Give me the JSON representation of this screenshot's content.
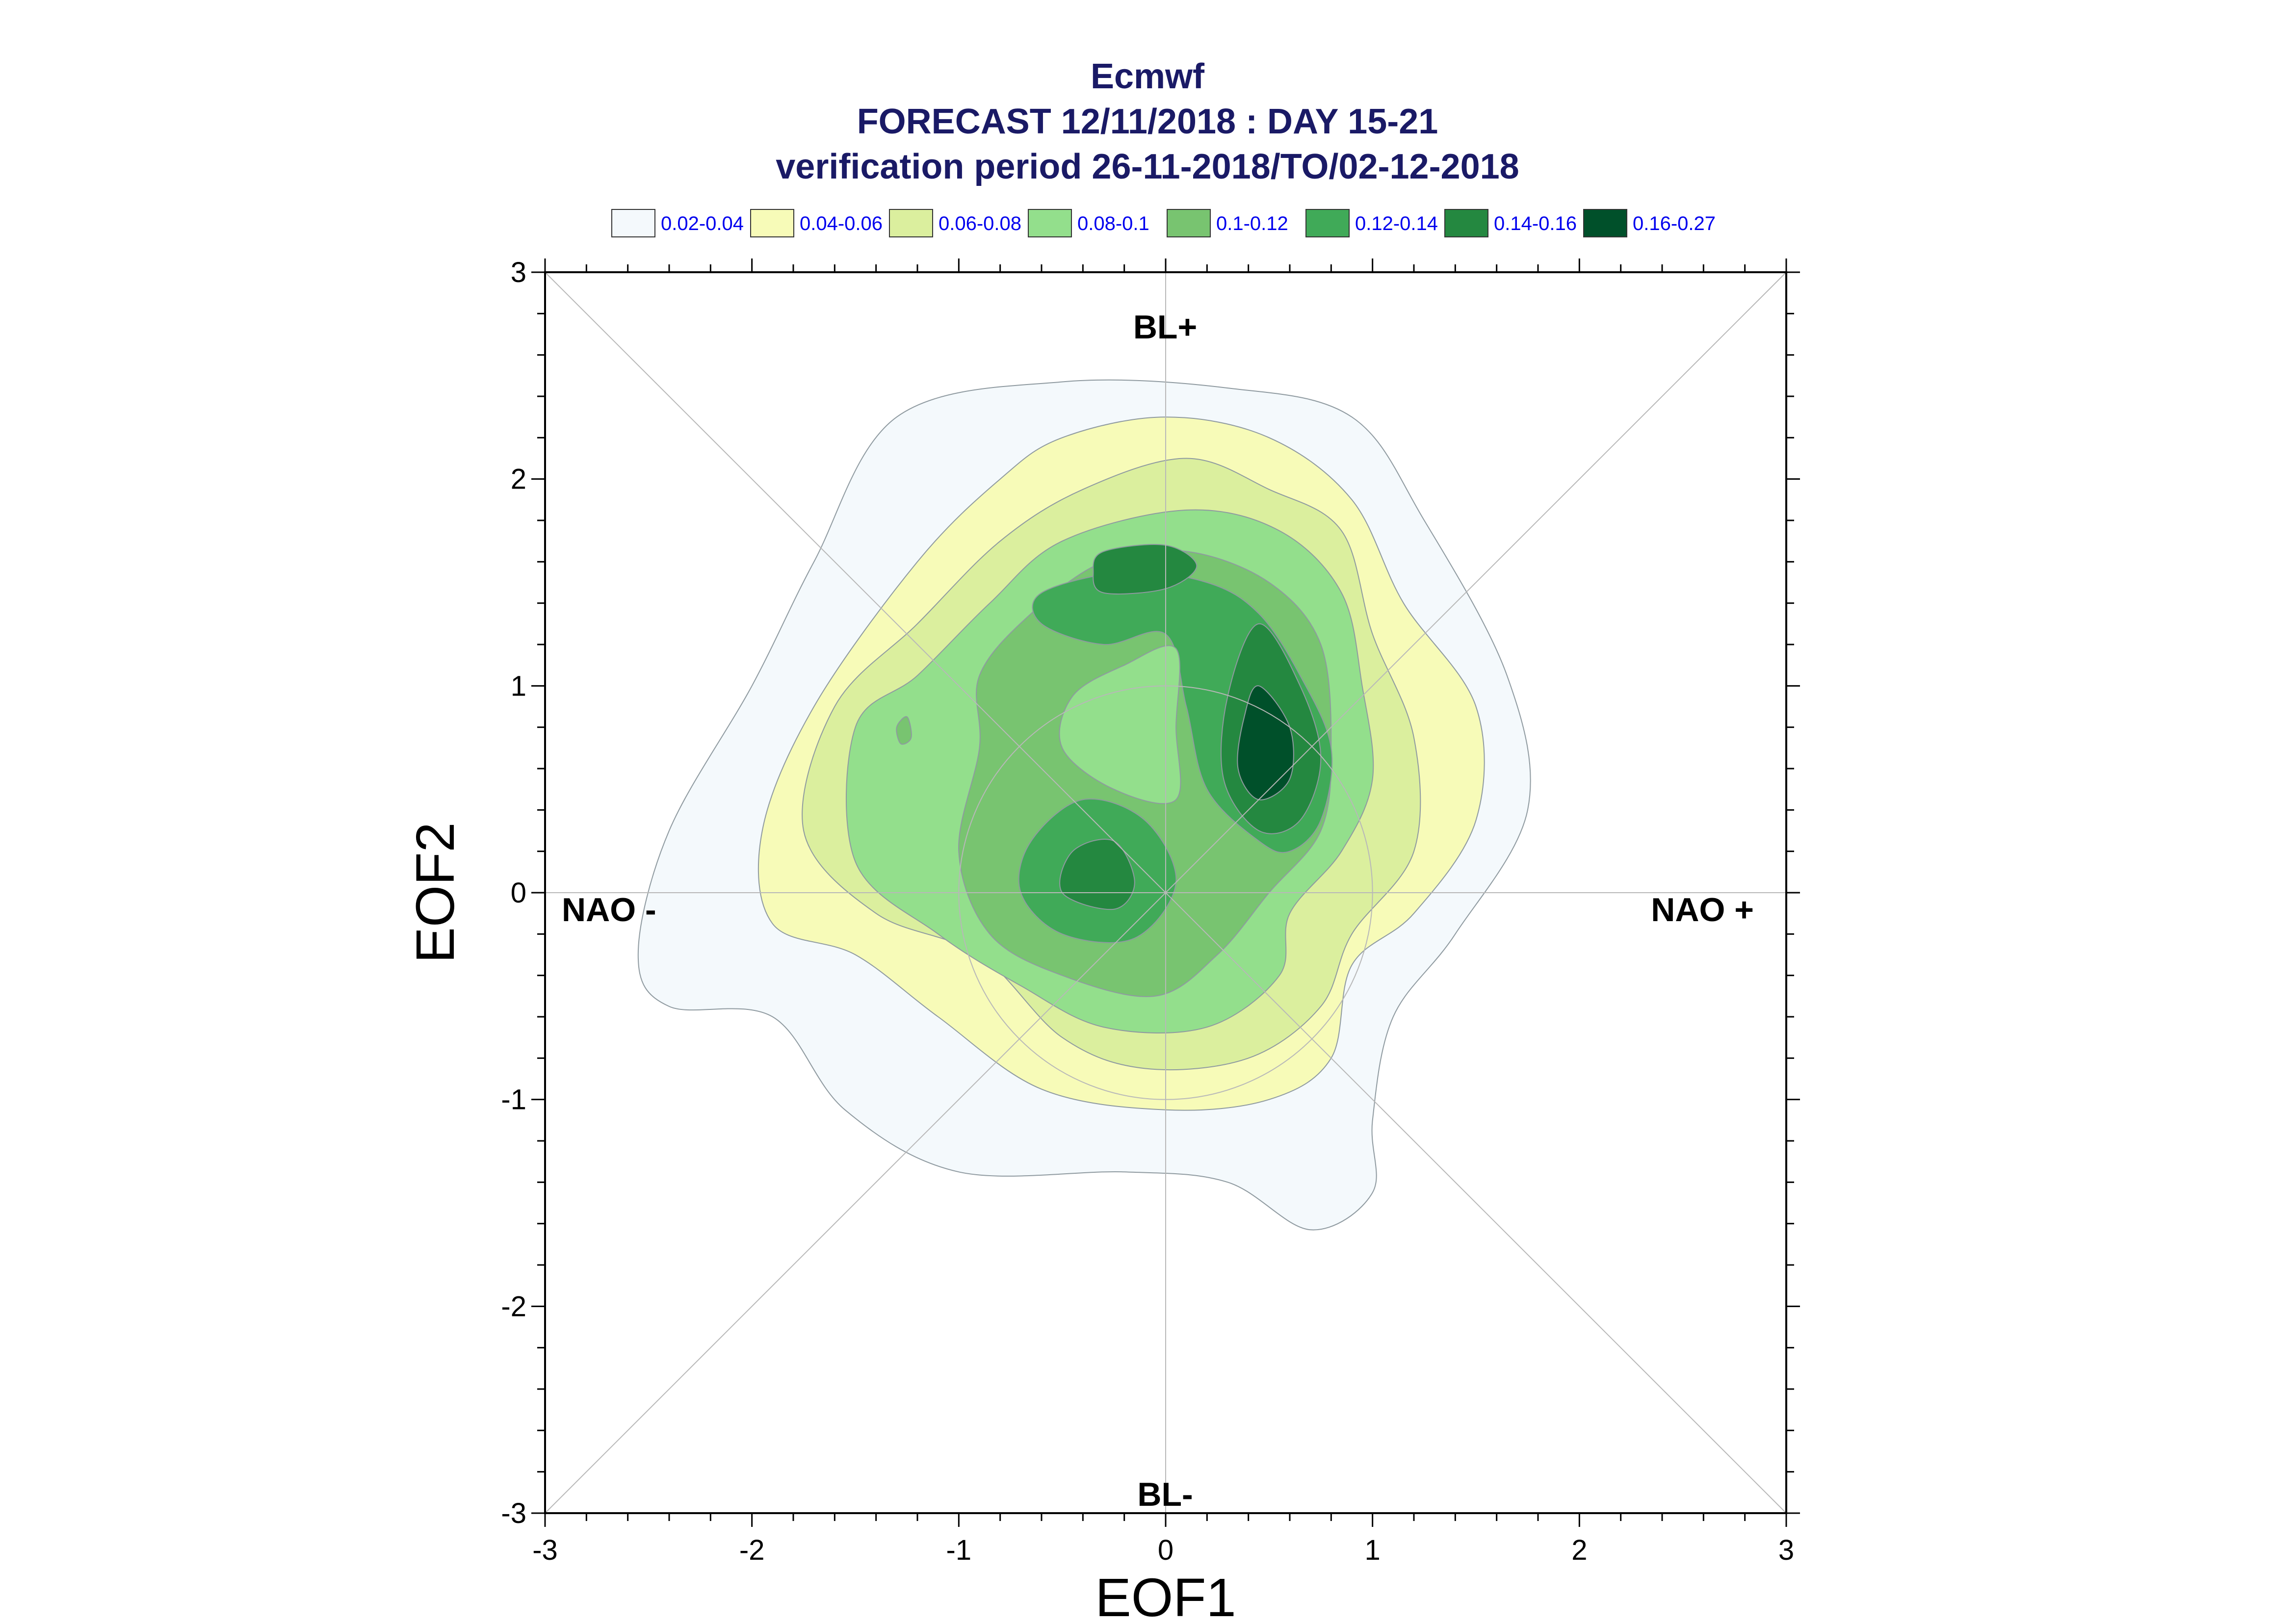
{
  "chart_data": {
    "type": "contour",
    "title_lines": [
      "Ecmwf",
      "FORECAST 12/11/2018 : DAY 15-21",
      "verification period 26-11-2018/TO/02-12-2018"
    ],
    "xlabel": "EOF1",
    "ylabel": "EOF2",
    "xlim": [
      -3,
      3
    ],
    "ylim": [
      -3,
      3
    ],
    "xticks": [
      "-3",
      "-2",
      "-1",
      "0",
      "1",
      "2",
      "3"
    ],
    "yticks": [
      "3",
      "2",
      "1",
      "0",
      "-1",
      "-2",
      "-3"
    ],
    "grid": "circle + diagonals",
    "legend_position": "top",
    "regions": {
      "top": "BL+",
      "bottom": "BL-",
      "left": "NAO -",
      "right": "NAO +"
    },
    "levels": [
      {
        "label": "0.02-0.04",
        "color": "#f4f9fc"
      },
      {
        "label": "0.04-0.06",
        "color": "#f7fbb8"
      },
      {
        "label": "0.06-0.08",
        "color": "#dbef9e"
      },
      {
        "label": "0.08-0.1",
        "color": "#93df8c"
      },
      {
        "label": "0.1-0.12",
        "color": "#78c470"
      },
      {
        "label": "0.12-0.14",
        "color": "#40aa58"
      },
      {
        "label": "0.14-0.16",
        "color": "#248840"
      },
      {
        "label": "0.16-0.27",
        "color": "#00502a"
      }
    ],
    "contours": [
      {
        "level": 0,
        "points": [
          [
            -1.3,
            2.3
          ],
          [
            -0.5,
            2.47
          ],
          [
            0.3,
            2.44
          ],
          [
            0.9,
            2.3
          ],
          [
            1.25,
            1.8
          ],
          [
            1.65,
            1.05
          ],
          [
            1.75,
            0.4
          ],
          [
            1.4,
            -0.2
          ],
          [
            1.1,
            -0.6
          ],
          [
            1.0,
            -1.1
          ],
          [
            1.0,
            -1.45
          ],
          [
            0.7,
            -1.63
          ],
          [
            0.3,
            -1.4
          ],
          [
            -0.2,
            -1.35
          ],
          [
            -1.0,
            -1.35
          ],
          [
            -1.55,
            -1.05
          ],
          [
            -1.9,
            -0.6
          ],
          [
            -2.4,
            -0.55
          ],
          [
            -2.55,
            -0.3
          ],
          [
            -2.4,
            0.3
          ],
          [
            -2.0,
            1.0
          ],
          [
            -1.7,
            1.6
          ]
        ]
      },
      {
        "level": 1,
        "points": [
          [
            -0.5,
            2.2
          ],
          [
            0.0,
            2.3
          ],
          [
            0.5,
            2.2
          ],
          [
            0.9,
            1.9
          ],
          [
            1.15,
            1.4
          ],
          [
            1.5,
            0.9
          ],
          [
            1.5,
            0.35
          ],
          [
            1.2,
            -0.1
          ],
          [
            0.9,
            -0.35
          ],
          [
            0.8,
            -0.8
          ],
          [
            0.5,
            -1.0
          ],
          [
            0.0,
            -1.05
          ],
          [
            -0.6,
            -0.95
          ],
          [
            -1.1,
            -0.6
          ],
          [
            -1.5,
            -0.3
          ],
          [
            -1.9,
            -0.15
          ],
          [
            -1.95,
            0.3
          ],
          [
            -1.7,
            0.9
          ],
          [
            -1.2,
            1.6
          ],
          [
            -0.8,
            2.0
          ]
        ]
      },
      {
        "level": 2,
        "points": [
          [
            -0.4,
            1.95
          ],
          [
            0.1,
            2.1
          ],
          [
            0.5,
            1.95
          ],
          [
            0.85,
            1.75
          ],
          [
            1.0,
            1.25
          ],
          [
            1.2,
            0.75
          ],
          [
            1.2,
            0.2
          ],
          [
            0.9,
            -0.2
          ],
          [
            0.75,
            -0.55
          ],
          [
            0.4,
            -0.8
          ],
          [
            -0.1,
            -0.85
          ],
          [
            -0.5,
            -0.7
          ],
          [
            -0.9,
            -0.3
          ],
          [
            -1.4,
            -0.1
          ],
          [
            -1.75,
            0.3
          ],
          [
            -1.6,
            0.9
          ],
          [
            -1.2,
            1.3
          ],
          [
            -0.8,
            1.7
          ]
        ]
      },
      {
        "level": 3,
        "points": [
          [
            -0.5,
            1.7
          ],
          [
            0.1,
            1.85
          ],
          [
            0.55,
            1.75
          ],
          [
            0.85,
            1.45
          ],
          [
            0.95,
            1.0
          ],
          [
            1.0,
            0.55
          ],
          [
            0.85,
            0.2
          ],
          [
            0.6,
            -0.1
          ],
          [
            0.55,
            -0.4
          ],
          [
            0.2,
            -0.65
          ],
          [
            -0.3,
            -0.65
          ],
          [
            -0.7,
            -0.45
          ],
          [
            -1.1,
            -0.2
          ],
          [
            -1.5,
            0.15
          ],
          [
            -1.5,
            0.8
          ],
          [
            -1.2,
            1.05
          ],
          [
            -0.85,
            1.4
          ]
        ]
      },
      {
        "level": 4,
        "points": [
          [
            -0.3,
            1.6
          ],
          [
            0.1,
            1.65
          ],
          [
            0.5,
            1.5
          ],
          [
            0.75,
            1.2
          ],
          [
            0.8,
            0.7
          ],
          [
            0.75,
            0.3
          ],
          [
            0.5,
            0.0
          ],
          [
            0.25,
            -0.3
          ],
          [
            -0.05,
            -0.5
          ],
          [
            -0.5,
            -0.4
          ],
          [
            -0.85,
            -0.2
          ],
          [
            -1.0,
            0.2
          ],
          [
            -0.9,
            0.7
          ],
          [
            -0.9,
            1.05
          ],
          [
            -0.65,
            1.35
          ]
        ]
      },
      {
        "level": 5,
        "points": [
          [
            -0.2,
            1.55
          ],
          [
            0.2,
            1.5
          ],
          [
            0.45,
            1.35
          ],
          [
            0.65,
            1.05
          ],
          [
            0.8,
            0.7
          ],
          [
            0.75,
            0.35
          ],
          [
            0.6,
            0.2
          ],
          [
            0.45,
            0.25
          ],
          [
            0.2,
            0.5
          ],
          [
            0.1,
            0.9
          ],
          [
            0.0,
            1.25
          ],
          [
            -0.3,
            1.2
          ],
          [
            -0.6,
            1.3
          ],
          [
            -0.6,
            1.45
          ]
        ]
      },
      {
        "level": 5,
        "points": [
          [
            -0.65,
            0.25
          ],
          [
            -0.4,
            0.45
          ],
          [
            -0.1,
            0.35
          ],
          [
            0.05,
            0.05
          ],
          [
            -0.15,
            -0.22
          ],
          [
            -0.5,
            -0.2
          ],
          [
            -0.7,
            0.0
          ]
        ]
      },
      {
        "level": 6,
        "points": [
          [
            0.45,
            1.3
          ],
          [
            0.65,
            1.0
          ],
          [
            0.75,
            0.65
          ],
          [
            0.65,
            0.35
          ],
          [
            0.45,
            0.3
          ],
          [
            0.28,
            0.55
          ],
          [
            0.3,
            0.95
          ]
        ]
      },
      {
        "level": 6,
        "points": [
          [
            -0.3,
            1.65
          ],
          [
            0.0,
            1.68
          ],
          [
            0.15,
            1.58
          ],
          [
            0.0,
            1.47
          ],
          [
            -0.3,
            1.45
          ],
          [
            -0.35,
            1.55
          ]
        ]
      },
      {
        "level": 6,
        "points": [
          [
            -0.45,
            0.2
          ],
          [
            -0.25,
            0.25
          ],
          [
            -0.15,
            0.05
          ],
          [
            -0.25,
            -0.08
          ],
          [
            -0.5,
            0.0
          ]
        ]
      },
      {
        "level": 7,
        "points": [
          [
            0.45,
            1.0
          ],
          [
            0.6,
            0.8
          ],
          [
            0.6,
            0.55
          ],
          [
            0.45,
            0.45
          ],
          [
            0.35,
            0.6
          ],
          [
            0.38,
            0.85
          ]
        ]
      },
      {
        "level": 4,
        "points": [
          [
            -1.3,
            0.8
          ],
          [
            -1.25,
            0.85
          ],
          [
            -1.23,
            0.75
          ],
          [
            -1.28,
            0.72
          ]
        ]
      }
    ],
    "inner_light_patch": {
      "level": 3,
      "points": [
        [
          -0.2,
          1.1
        ],
        [
          0.05,
          1.18
        ],
        [
          0.05,
          0.8
        ],
        [
          0.05,
          0.45
        ],
        [
          -0.25,
          0.5
        ],
        [
          -0.5,
          0.7
        ],
        [
          -0.45,
          0.95
        ]
      ]
    }
  }
}
